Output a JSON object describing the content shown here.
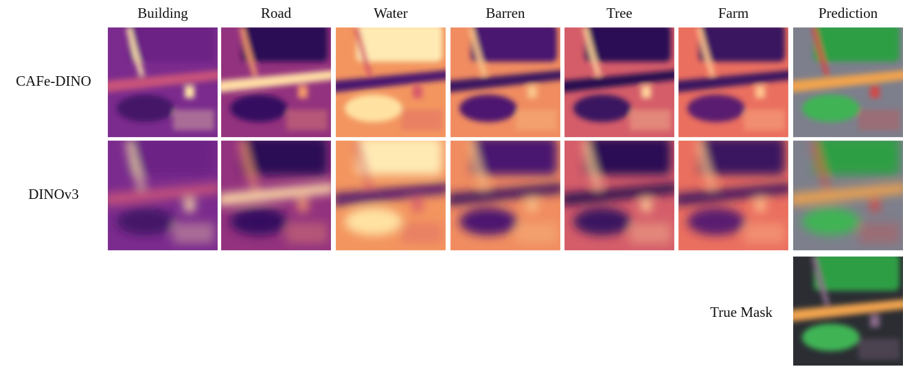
{
  "columns": [
    "Building",
    "Road",
    "Water",
    "Barren",
    "Tree",
    "Farm",
    "Prediction"
  ],
  "rows": [
    "CAFe-DINO",
    "DINOv3"
  ],
  "true_mask": "True Mask"
}
